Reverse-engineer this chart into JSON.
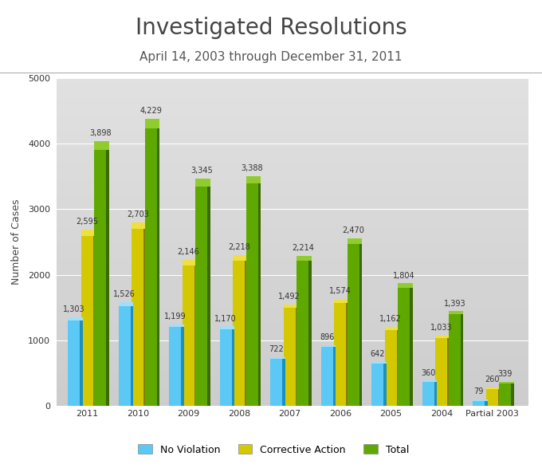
{
  "title": "Investigated Resolutions",
  "subtitle": "April 14, 2003 through December 31, 2011",
  "categories": [
    "2011",
    "2010",
    "2009",
    "2008",
    "2007",
    "2006",
    "2005",
    "2004",
    "Partial 2003"
  ],
  "no_violation": [
    1303,
    1526,
    1199,
    1170,
    722,
    896,
    642,
    360,
    79
  ],
  "corrective_action": [
    2595,
    2703,
    2146,
    2218,
    1492,
    1574,
    1162,
    1033,
    260
  ],
  "total": [
    3898,
    4229,
    3345,
    3388,
    2214,
    2470,
    1804,
    1393,
    339
  ],
  "bar_width": 0.23,
  "depth": 0.06,
  "nv_face": "#5BC8F5",
  "nv_side": "#1E90C0",
  "nv_top": "#A0DFFA",
  "ca_face": "#D4C800",
  "ca_side": "#857E00",
  "ca_top": "#EDE040",
  "tot_face": "#5EA800",
  "tot_side": "#3A6A00",
  "tot_top": "#90CC30",
  "ylabel": "Number of Cases",
  "ylim": [
    0,
    5000
  ],
  "yticks": [
    0,
    1000,
    2000,
    3000,
    4000,
    5000
  ],
  "title_fontsize": 20,
  "subtitle_fontsize": 11,
  "label_fontsize": 7,
  "axis_fontsize": 8,
  "legend_fontsize": 9
}
